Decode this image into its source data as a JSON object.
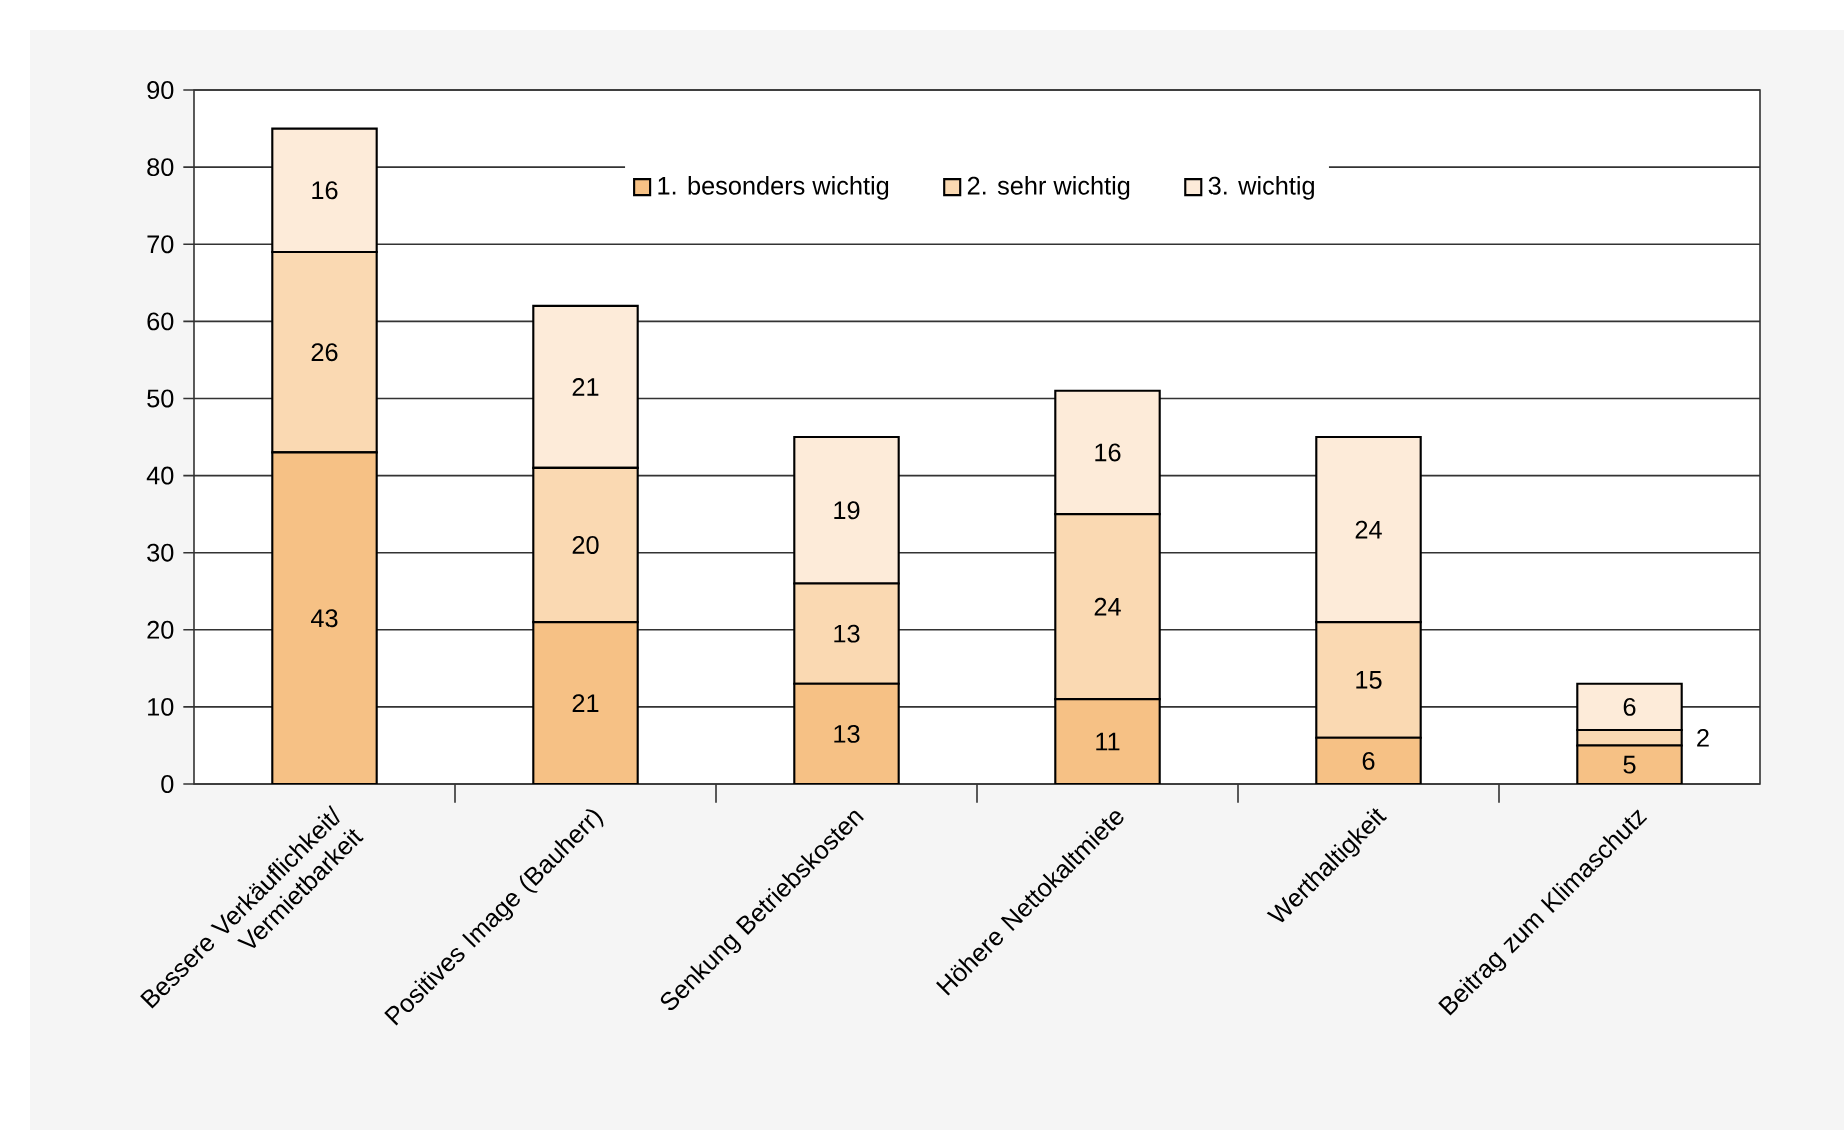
{
  "chart_data": {
    "type": "bar",
    "stacked": true,
    "categories": [
      "Bessere Verkäuflichkeit/ Vermietbarkeit",
      "Positives Image (Bauherr)",
      "Senkung Betriebskosten",
      "Höhere Nettokaltmiete",
      "Werthaltigkeit",
      "Beitrag zum Klimaschutz"
    ],
    "series": [
      {
        "name": "1. besonders wichtig",
        "color": "#f6c185",
        "values": [
          43,
          21,
          13,
          11,
          6,
          5
        ]
      },
      {
        "name": "2. sehr wichtig",
        "color": "#fad9b2",
        "values": [
          26,
          20,
          13,
          24,
          15,
          2
        ]
      },
      {
        "name": "3. wichtig",
        "color": "#fdebd9",
        "values": [
          16,
          21,
          19,
          16,
          24,
          6
        ]
      }
    ],
    "ylim": [
      0,
      90
    ],
    "yticks": [
      0,
      10,
      20,
      30,
      40,
      50,
      60,
      70,
      80,
      90
    ],
    "grid": "y",
    "legend": "top",
    "data_labels": true
  }
}
